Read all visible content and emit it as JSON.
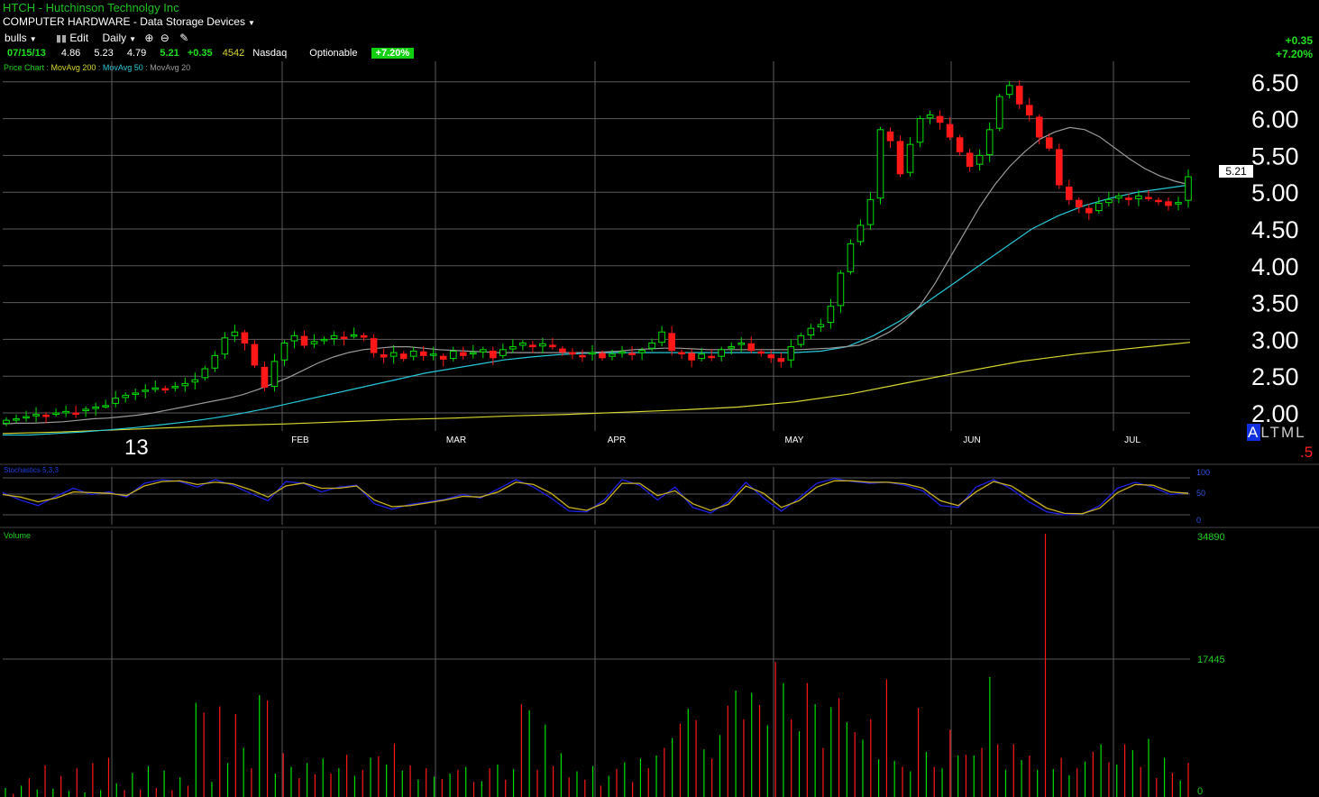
{
  "header": {
    "symbol_title": "HTCH - Hutchinson Technolgy Inc",
    "sector": "COMPUTER HARDWARE - Data Storage Devices"
  },
  "toolbar": {
    "watchlist": "bulls",
    "edit_label": "Edit",
    "period": "Daily"
  },
  "quote": {
    "date": "07/15/13",
    "open": "4.86",
    "high": "5.23",
    "low": "4.79",
    "last": "5.21",
    "change": "+0.35",
    "volume": "4542",
    "exchange": "Nasdaq",
    "optionable": "Optionable",
    "change_pct": "+7.20%"
  },
  "right_header": {
    "change": "+0.35",
    "change_pct": "+7.20%"
  },
  "legend": {
    "price_chart": "Price Chart",
    "ma200": "MovAvg 200",
    "ma50": "MovAvg 50",
    "ma20": "MovAvg 20"
  },
  "price_scale_buttons": {
    "a": "A",
    "l": "L",
    "t": "T",
    "m": "M",
    "l2": "L"
  },
  "scale_value": ".5",
  "last_price_tag": "5.21",
  "year_label": "13",
  "stoch": {
    "label": "Stochastics 5,3,3",
    "ticks": [
      "100",
      "50",
      "0"
    ]
  },
  "volume_panel": {
    "label": "Volume",
    "ticks": [
      "34890",
      "17445",
      "0"
    ]
  },
  "colors": {
    "up": "#00e000",
    "down": "#ff1818",
    "ma200": "#d8d830",
    "ma50": "#28c8d8",
    "ma20": "#9a9a9a",
    "grid": "#5a5a5a",
    "stoch_k": "#2020e0",
    "stoch_d": "#c8b020"
  },
  "chart_data": [
    {
      "type": "candlestick",
      "title": "HTCH - Hutchinson Technolgy Inc",
      "x_tick_labels": [
        "FEB",
        "MAR",
        "APR",
        "MAY",
        "JUN",
        "JUL"
      ],
      "y_tick_labels": [
        "6.50",
        "6.00",
        "5.50",
        "5.00",
        "4.50",
        "4.00",
        "3.50",
        "3.00",
        "2.50",
        "2.00"
      ],
      "ylim": [
        1.6,
        6.7
      ],
      "series_names": [
        "MovAvg 200",
        "MovAvg 50",
        "MovAvg 20"
      ],
      "close": [
        1.9,
        1.92,
        1.95,
        1.98,
        1.97,
        1.99,
        2.02,
        2.0,
        2.05,
        2.08,
        2.1,
        2.2,
        2.24,
        2.27,
        2.31,
        2.34,
        2.33,
        2.36,
        2.4,
        2.45,
        2.6,
        2.78,
        3.02,
        3.1,
        2.95,
        2.65,
        2.35,
        2.7,
        2.95,
        3.05,
        2.92,
        2.97,
        3.0,
        3.05,
        3.02,
        3.06,
        3.03,
        2.82,
        2.76,
        2.82,
        2.74,
        2.84,
        2.78,
        2.8,
        2.73,
        2.84,
        2.78,
        2.82,
        2.86,
        2.75,
        2.86,
        2.9,
        2.95,
        2.9,
        2.94,
        2.9,
        2.83,
        2.8,
        2.78,
        2.82,
        2.75,
        2.8,
        2.82,
        2.8,
        2.85,
        2.95,
        3.1,
        2.85,
        2.82,
        2.72,
        2.8,
        2.76,
        2.86,
        2.9,
        2.95,
        2.85,
        2.82,
        2.75,
        2.7,
        2.9,
        3.05,
        3.15,
        3.2,
        3.45,
        3.9,
        4.3,
        4.55,
        4.9,
        5.85,
        5.7,
        5.25,
        5.65,
        6.0,
        6.05,
        5.95,
        5.75,
        5.55,
        5.35,
        5.5,
        5.85,
        6.3,
        6.45,
        6.2,
        6.05,
        5.75,
        5.6,
        5.1,
        4.9,
        4.8,
        4.72,
        4.85,
        4.9,
        4.95,
        4.9,
        4.95,
        4.92,
        4.88,
        4.82,
        4.86,
        5.21
      ],
      "ma20": [
        1.85,
        1.86,
        1.86,
        1.87,
        1.88,
        1.9,
        1.92,
        1.93,
        1.95,
        1.97,
        2.0,
        2.04,
        2.08,
        2.12,
        2.16,
        2.2,
        2.25,
        2.32,
        2.4,
        2.48,
        2.58,
        2.68,
        2.76,
        2.82,
        2.86,
        2.88,
        2.9,
        2.9,
        2.88,
        2.86,
        2.85,
        2.84,
        2.83,
        2.82,
        2.82,
        2.82,
        2.82,
        2.82,
        2.82,
        2.82,
        2.83,
        2.84,
        2.86,
        2.87,
        2.88,
        2.88,
        2.87,
        2.86,
        2.86,
        2.86,
        2.86,
        2.86,
        2.86,
        2.86,
        2.87,
        2.88,
        2.9,
        2.92,
        3.0,
        3.1,
        3.25,
        3.45,
        3.75,
        4.1,
        4.45,
        4.8,
        5.1,
        5.35,
        5.55,
        5.72,
        5.82,
        5.88,
        5.85,
        5.75,
        5.6,
        5.45,
        5.32,
        5.22,
        5.15,
        5.1
      ],
      "ma50": [
        1.7,
        1.7,
        1.72,
        1.74,
        1.77,
        1.8,
        1.84,
        1.88,
        1.93,
        1.99,
        2.06,
        2.14,
        2.22,
        2.3,
        2.38,
        2.46,
        2.54,
        2.6,
        2.66,
        2.72,
        2.76,
        2.79,
        2.81,
        2.82,
        2.82,
        2.82,
        2.82,
        2.82,
        2.82,
        2.82,
        2.82,
        2.84,
        2.9,
        3.05,
        3.25,
        3.5,
        3.75,
        4.0,
        4.25,
        4.5,
        4.68,
        4.82,
        4.92,
        5.0,
        5.05,
        5.1
      ],
      "ma200": [
        1.72,
        1.74,
        1.77,
        1.8,
        1.83,
        1.85,
        1.88,
        1.91,
        1.93,
        1.96,
        1.98,
        2.01,
        2.04,
        2.08,
        2.15,
        2.26,
        2.41,
        2.56,
        2.7,
        2.8,
        2.88,
        2.96
      ]
    },
    {
      "type": "line",
      "title": "Stochastics 5,3,3",
      "ylim": [
        0,
        100
      ],
      "y_tick_labels": [
        "100",
        "50",
        "0"
      ],
      "series": [
        {
          "name": "%K",
          "values": [
            60,
            40,
            25,
            50,
            72,
            55,
            62,
            48,
            85,
            95,
            90,
            75,
            95,
            80,
            58,
            38,
            90,
            85,
            62,
            75,
            80,
            30,
            15,
            28,
            35,
            42,
            55,
            45,
            70,
            95,
            75,
            45,
            10,
            8,
            40,
            95,
            80,
            40,
            75,
            20,
            5,
            35,
            88,
            45,
            10,
            45,
            85,
            98,
            90,
            85,
            88,
            80,
            65,
            25,
            20,
            75,
            95,
            70,
            35,
            8,
            0,
            2,
            25,
            72,
            88,
            75,
            55,
            60
          ]
        },
        {
          "name": "%D",
          "values": [
            55,
            48,
            35,
            45,
            62,
            60,
            58,
            52,
            78,
            90,
            92,
            82,
            88,
            84,
            68,
            48,
            78,
            86,
            72,
            72,
            78,
            40,
            22,
            25,
            32,
            40,
            50,
            48,
            62,
            88,
            82,
            58,
            20,
            12,
            32,
            85,
            85,
            52,
            65,
            30,
            12,
            28,
            78,
            58,
            20,
            38,
            75,
            92,
            92,
            88,
            88,
            84,
            72,
            38,
            25,
            62,
            90,
            78,
            48,
            18,
            4,
            3,
            18,
            60,
            82,
            80,
            62,
            58
          ]
        }
      ]
    },
    {
      "type": "bar",
      "title": "Volume",
      "ylim": [
        0,
        34890
      ],
      "y_tick_labels": [
        "34890",
        "17445",
        "0"
      ],
      "values": [
        1200,
        400,
        1500,
        2500,
        1000,
        4200,
        1100,
        2800,
        800,
        3800,
        600,
        4500,
        900,
        5200,
        1800,
        900,
        3200,
        1000,
        4100,
        1200,
        3500,
        900,
        2600,
        1500,
        12500,
        11200,
        2000,
        12000,
        4500,
        11000,
        6500,
        3800,
        13500,
        12800,
        3100,
        5800,
        4000,
        2500,
        4500,
        3000,
        5100,
        3100,
        3800,
        5600,
        2800,
        3600,
        5200,
        5400,
        4300,
        7100,
        3500,
        4200,
        2300,
        3800,
        2700,
        2400,
        3100,
        3600,
        4000,
        2000,
        2100,
        3800,
        4300,
        2300,
        3700,
        12300,
        11500,
        3600,
        9600,
        4100,
        5800,
        2600,
        3400,
        2300,
        4100,
        1500,
        2800,
        3700,
        4600,
        2000,
        5100,
        3800,
        5500,
        6500,
        7800,
        9700,
        11700,
        10200,
        6300,
        5100,
        8200,
        12100,
        14100,
        10300,
        13800,
        12200,
        9500,
        17900,
        15100,
        10300,
        8700,
        15100,
        12300,
        6500,
        11900,
        13100,
        9900,
        8600,
        7600,
        10300,
        5000,
        15600,
        4800,
        4000,
        3400,
        11800,
        6000,
        4000,
        3800,
        8900,
        5500,
        5600,
        5500,
        6500,
        15900,
        7000,
        3600,
        7000,
        4900,
        5500,
        3600,
        34890,
        3700,
        5200,
        2900,
        3800,
        4700,
        6000,
        7000,
        4600,
        4300,
        7000,
        6200,
        4000,
        7700,
        2500,
        5200,
        3200,
        2200,
        4542
      ]
    }
  ]
}
